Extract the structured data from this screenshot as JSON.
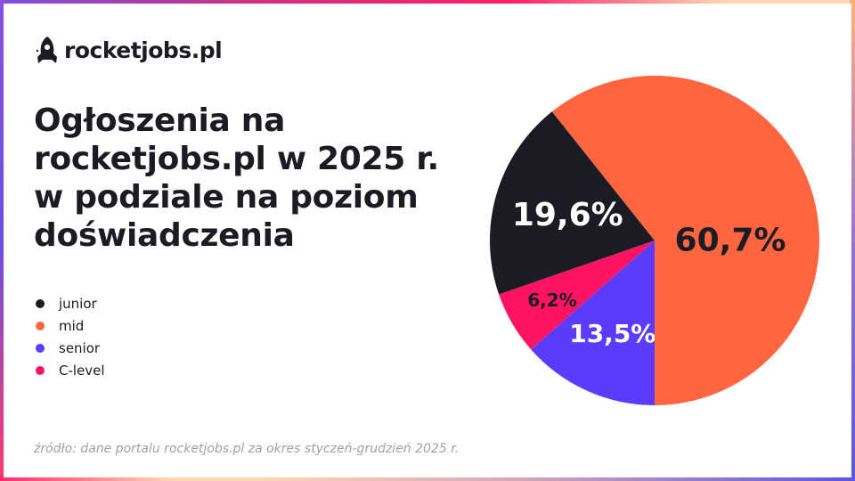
{
  "logo": {
    "text": "rocketjobs.pl",
    "icon": "rocket-icon"
  },
  "chart_data": {
    "type": "pie",
    "title": "Ogłoszenia na rocketjobs.pl w 2025 r. w podziale na poziom doświadczenia",
    "categories": [
      "junior",
      "mid",
      "senior",
      "C-level"
    ],
    "values": [
      19.6,
      60.7,
      13.5,
      6.2
    ],
    "labels": [
      "19,6%",
      "60,7%",
      "13,5%",
      "6,2%"
    ],
    "colors": [
      "#1b1b24",
      "#ff6640",
      "#5b3cff",
      "#ff1461"
    ],
    "label_colors": [
      "#ffffff",
      "#1b1b24",
      "#ffffff",
      "#1b1b24"
    ],
    "legend_position": "left"
  },
  "source": "źródło: dane portalu rocketjobs.pl za okres styczeń-grudzień 2025 r."
}
